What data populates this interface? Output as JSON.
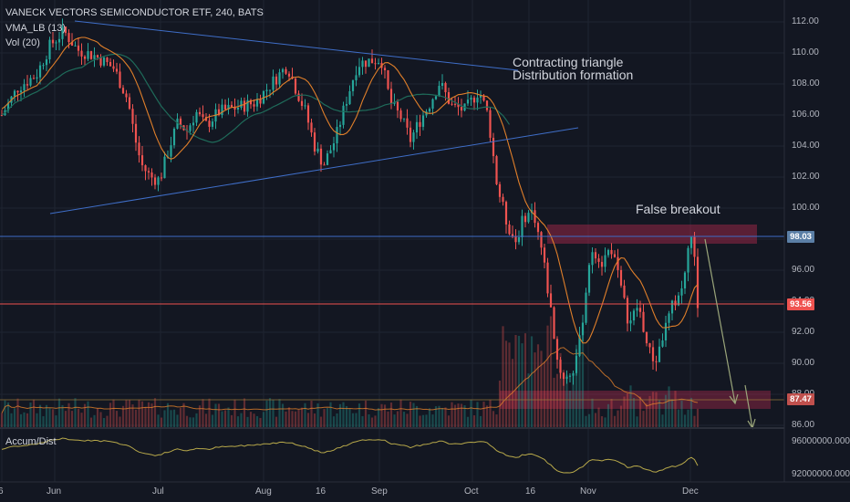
{
  "header": {
    "title": "VANECK VECTORS SEMICONDUCTOR ETF, 240, BATS",
    "indicator_1": "VMA_LB (13)",
    "indicator_2": "Vol (20)"
  },
  "lower_pane": {
    "label": "Accum/Dist",
    "ticks": [
      "96000000.000",
      "92000000.000"
    ]
  },
  "price_tags": {
    "resistance": "98.03",
    "last": "93.56",
    "support": "87.47"
  },
  "annotations": {
    "triangle_1": "Contracting triangle",
    "triangle_2": "Distribution formation",
    "false_breakout": "False breakout"
  },
  "colors": {
    "up": "#26a69a",
    "down": "#ef5350",
    "trendline": "#3f6ec8",
    "vma": "#e07f2a",
    "ma": "#1f6b5a",
    "zone": "#b22b4e",
    "background": "#131722"
  },
  "chart_data": {
    "type": "candlestick",
    "symbol": "VANECK VECTORS SEMICONDUCTOR ETF",
    "interval": "240",
    "y_ticks": [
      "112.00",
      "110.00",
      "108.00",
      "106.00",
      "104.00",
      "102.00",
      "100.00",
      "98.00",
      "96.00",
      "94.00",
      "92.00",
      "90.00",
      "88.00",
      "86.00"
    ],
    "x_ticks": [
      "6",
      "Jun",
      "Jul",
      "Aug",
      "16",
      "Sep",
      "Oct",
      "16",
      "Nov",
      "Dec"
    ],
    "ylim": [
      85.5,
      113
    ],
    "grid": true,
    "key_levels": {
      "resistance": 98.03,
      "last": 93.56,
      "support": 87.47
    },
    "path_points": [
      {
        "x": 0,
        "y": 105.8
      },
      {
        "x": 20,
        "y": 107.8
      },
      {
        "x": 40,
        "y": 108.6
      },
      {
        "x": 55,
        "y": 110.5
      },
      {
        "x": 70,
        "y": 111.4
      },
      {
        "x": 85,
        "y": 110.2
      },
      {
        "x": 105,
        "y": 109.8
      },
      {
        "x": 125,
        "y": 109.0
      },
      {
        "x": 140,
        "y": 107.0
      },
      {
        "x": 148,
        "y": 104.5
      },
      {
        "x": 155,
        "y": 102.8
      },
      {
        "x": 165,
        "y": 102.0
      },
      {
        "x": 175,
        "y": 101.8
      },
      {
        "x": 185,
        "y": 103.8
      },
      {
        "x": 195,
        "y": 105.5
      },
      {
        "x": 205,
        "y": 105.0
      },
      {
        "x": 215,
        "y": 106.2
      },
      {
        "x": 225,
        "y": 105.3
      },
      {
        "x": 240,
        "y": 106.2
      },
      {
        "x": 260,
        "y": 106.5
      },
      {
        "x": 280,
        "y": 106.8
      },
      {
        "x": 300,
        "y": 108.2
      },
      {
        "x": 315,
        "y": 109.2
      },
      {
        "x": 325,
        "y": 107.6
      },
      {
        "x": 335,
        "y": 106.2
      },
      {
        "x": 345,
        "y": 104.0
      },
      {
        "x": 355,
        "y": 102.8
      },
      {
        "x": 368,
        "y": 104.5
      },
      {
        "x": 380,
        "y": 107.0
      },
      {
        "x": 392,
        "y": 109.3
      },
      {
        "x": 405,
        "y": 109.5
      },
      {
        "x": 418,
        "y": 109.6
      },
      {
        "x": 428,
        "y": 106.8
      },
      {
        "x": 440,
        "y": 105.8
      },
      {
        "x": 450,
        "y": 104.4
      },
      {
        "x": 460,
        "y": 105.6
      },
      {
        "x": 470,
        "y": 106.6
      },
      {
        "x": 482,
        "y": 108.1
      },
      {
        "x": 495,
        "y": 106.6
      },
      {
        "x": 510,
        "y": 106.3
      },
      {
        "x": 525,
        "y": 107.6
      },
      {
        "x": 535,
        "y": 106.0
      },
      {
        "x": 545,
        "y": 101.5
      },
      {
        "x": 555,
        "y": 99.2
      },
      {
        "x": 565,
        "y": 97.8
      },
      {
        "x": 575,
        "y": 99.5
      },
      {
        "x": 585,
        "y": 99.8
      },
      {
        "x": 595,
        "y": 97.0
      },
      {
        "x": 605,
        "y": 93.0
      },
      {
        "x": 612,
        "y": 89.8
      },
      {
        "x": 620,
        "y": 89.0
      },
      {
        "x": 628,
        "y": 89.5
      },
      {
        "x": 636,
        "y": 91.5
      },
      {
        "x": 642,
        "y": 94.5
      },
      {
        "x": 650,
        "y": 97.5
      },
      {
        "x": 660,
        "y": 96.5
      },
      {
        "x": 670,
        "y": 97.5
      },
      {
        "x": 680,
        "y": 95.0
      },
      {
        "x": 690,
        "y": 92.5
      },
      {
        "x": 700,
        "y": 93.8
      },
      {
        "x": 710,
        "y": 91.0
      },
      {
        "x": 718,
        "y": 90.0
      },
      {
        "x": 728,
        "y": 92.0
      },
      {
        "x": 738,
        "y": 93.8
      },
      {
        "x": 748,
        "y": 94.8
      },
      {
        "x": 758,
        "y": 98.4
      },
      {
        "x": 763,
        "y": 95.8
      },
      {
        "x": 767,
        "y": 93.56
      }
    ]
  }
}
